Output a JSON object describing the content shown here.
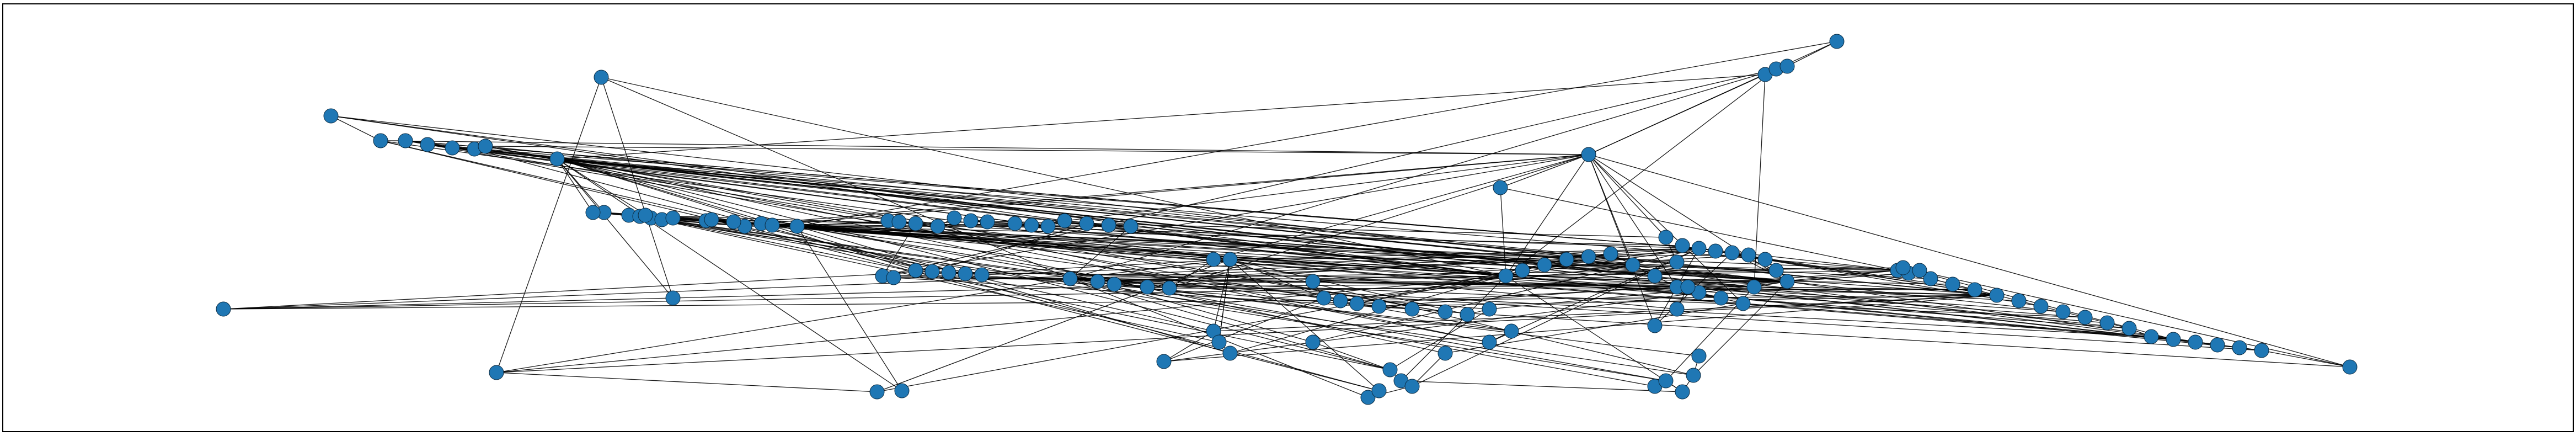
{
  "graph": {
    "node_color": "#1f77b4",
    "edge_color": "#000000",
    "frame_color": "#000000",
    "node_count": 120
  }
}
